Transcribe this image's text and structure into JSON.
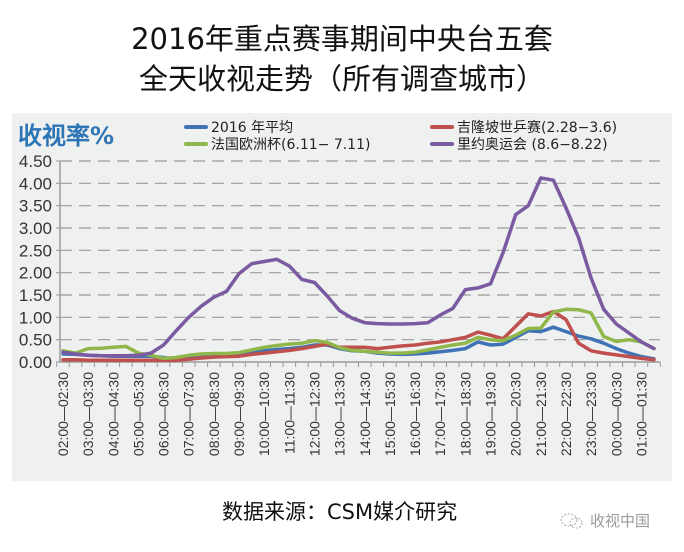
{
  "title": {
    "line1": "2016年重点赛事期间中央台五套",
    "line2": "全天收视走势（所有调查城市）"
  },
  "footer": {
    "source": "数据来源：CSM媒介研究",
    "watermark": "收视中国"
  },
  "colors": {
    "panel_bg": "#eff0f0",
    "ylabel": "#2e75b6",
    "avg2016": "#3f73b5",
    "table_tennis": "#c0504d",
    "euro": "#8fb74a",
    "olympics": "#7a5aa0"
  },
  "chart_data": {
    "type": "line",
    "title": "2016年重点赛事期间中央台五套 全天收视走势（所有调查城市）",
    "ylabel": "收视率%",
    "xlabel": "",
    "ylim": [
      0,
      4.5
    ],
    "yticks": [
      "4.50",
      "4.00",
      "3.50",
      "3.00",
      "2.50",
      "2.00",
      "1.50",
      "1.00",
      "0.50",
      "0.00"
    ],
    "grid": true,
    "legend_position": "top",
    "x_tick_labels": [
      "02:00—02:30",
      "03:00—03:30",
      "04:00—04:30",
      "05:00—05:30",
      "06:00—06:30",
      "07:00—07:30",
      "08:00—08:30",
      "09:00—09:30",
      "10:00—10:30",
      "11:00—11:30",
      "12:00—12:30",
      "13:00—13:30",
      "14:00—14:30",
      "15:00—15:30",
      "16:00—16:30",
      "17:00—17:30",
      "18:00—18:30",
      "19:00—19:30",
      "20:00—20:30",
      "21:00—21:30",
      "22:00—22:30",
      "23:00—23:30",
      "00:00—00:30",
      "01:00—01:30"
    ],
    "x": [
      "02:00",
      "02:30",
      "03:00",
      "03:30",
      "04:00",
      "04:30",
      "05:00",
      "05:30",
      "06:00",
      "06:30",
      "07:00",
      "07:30",
      "08:00",
      "08:30",
      "09:00",
      "09:30",
      "10:00",
      "10:30",
      "11:00",
      "11:30",
      "12:00",
      "12:30",
      "13:00",
      "13:30",
      "14:00",
      "14:30",
      "15:00",
      "15:30",
      "16:00",
      "16:30",
      "17:00",
      "17:30",
      "18:00",
      "18:30",
      "19:00",
      "19:30",
      "20:00",
      "20:30",
      "21:00",
      "21:30",
      "22:00",
      "22:30",
      "23:00",
      "23:30",
      "00:00",
      "00:30",
      "01:00",
      "01:30"
    ],
    "series": [
      {
        "name": "2016 年平均",
        "color": "#3f73b5",
        "values": [
          0.18,
          0.17,
          0.15,
          0.14,
          0.13,
          0.13,
          0.13,
          0.13,
          0.1,
          0.06,
          0.08,
          0.12,
          0.14,
          0.15,
          0.16,
          0.2,
          0.25,
          0.28,
          0.3,
          0.33,
          0.38,
          0.38,
          0.3,
          0.25,
          0.24,
          0.2,
          0.18,
          0.17,
          0.18,
          0.2,
          0.23,
          0.26,
          0.3,
          0.45,
          0.38,
          0.4,
          0.55,
          0.7,
          0.68,
          0.78,
          0.68,
          0.58,
          0.52,
          0.42,
          0.3,
          0.2,
          0.12,
          0.07
        ]
      },
      {
        "name": "吉隆坡世乒赛(2.28-3.6)",
        "color": "#c0504d",
        "values": [
          0.05,
          0.05,
          0.04,
          0.04,
          0.04,
          0.04,
          0.04,
          0.04,
          0.04,
          0.04,
          0.06,
          0.09,
          0.11,
          0.12,
          0.13,
          0.17,
          0.2,
          0.23,
          0.26,
          0.3,
          0.35,
          0.4,
          0.33,
          0.33,
          0.33,
          0.3,
          0.33,
          0.36,
          0.38,
          0.42,
          0.45,
          0.5,
          0.55,
          0.67,
          0.6,
          0.52,
          0.8,
          1.08,
          1.03,
          1.13,
          0.95,
          0.42,
          0.25,
          0.2,
          0.16,
          0.12,
          0.08,
          0.05
        ]
      },
      {
        "name": "法国欧洲杯(6.11- 7.11)",
        "color": "#8fb74a",
        "values": [
          0.25,
          0.2,
          0.3,
          0.31,
          0.33,
          0.35,
          0.2,
          0.15,
          0.08,
          0.1,
          0.15,
          0.18,
          0.19,
          0.19,
          0.21,
          0.27,
          0.33,
          0.37,
          0.4,
          0.42,
          0.48,
          0.44,
          0.32,
          0.26,
          0.24,
          0.22,
          0.2,
          0.2,
          0.22,
          0.27,
          0.33,
          0.38,
          0.42,
          0.55,
          0.5,
          0.48,
          0.6,
          0.75,
          0.76,
          1.12,
          1.18,
          1.17,
          1.1,
          0.57,
          0.46,
          0.5,
          0.45,
          0.3
        ]
      },
      {
        "name": "里约奥运会 (8.6-8.22)",
        "color": "#7a5aa0",
        "values": [
          0.22,
          0.18,
          0.15,
          0.14,
          0.14,
          0.14,
          0.15,
          0.2,
          0.38,
          0.7,
          1.0,
          1.25,
          1.45,
          1.58,
          1.98,
          2.2,
          2.25,
          2.3,
          2.15,
          1.85,
          1.78,
          1.48,
          1.15,
          0.98,
          0.88,
          0.86,
          0.85,
          0.85,
          0.86,
          0.88,
          1.05,
          1.2,
          1.62,
          1.66,
          1.75,
          2.45,
          3.3,
          3.5,
          4.12,
          4.07,
          3.45,
          2.78,
          1.88,
          1.18,
          0.85,
          0.65,
          0.45,
          0.3
        ]
      }
    ]
  },
  "legend": [
    {
      "label": "2016 年平均",
      "color": "#3f73b5"
    },
    {
      "label": "吉隆坡世乒赛(2.28−3.6)",
      "color": "#c0504d"
    },
    {
      "label": "法国欧洲杯(6.11− 7.11)",
      "color": "#8fb74a"
    },
    {
      "label": "里约奥运会 (8.6−8.22)",
      "color": "#7a5aa0"
    }
  ]
}
